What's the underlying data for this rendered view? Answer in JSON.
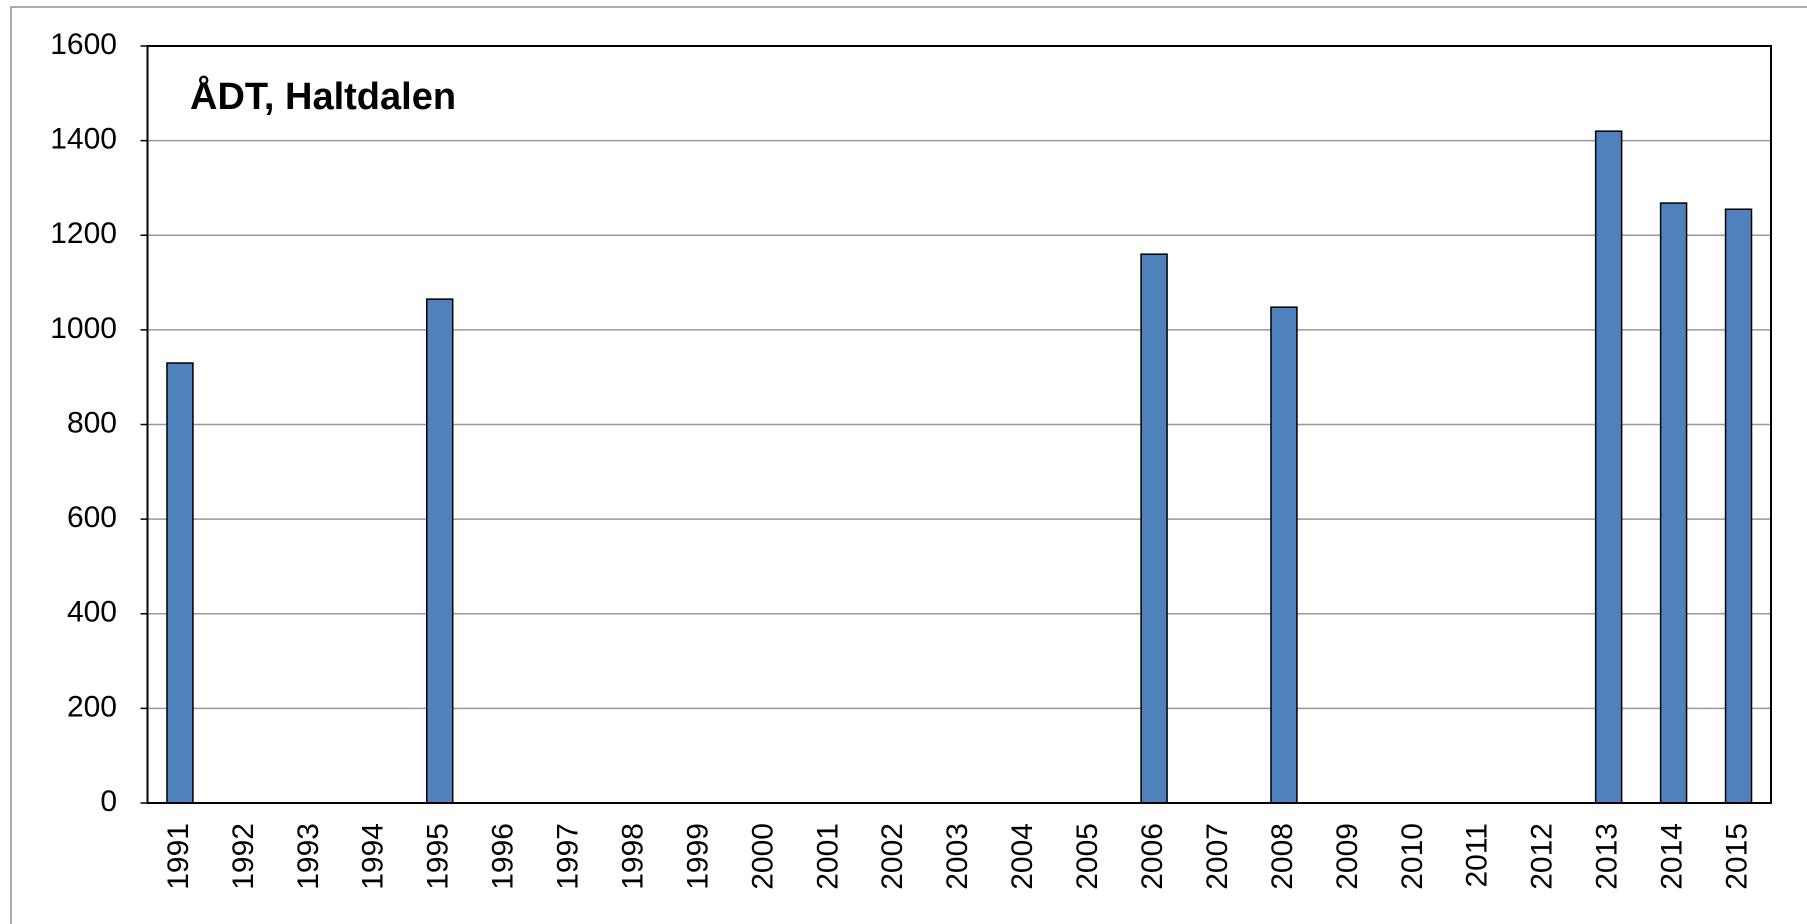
{
  "chart_data": {
    "type": "bar",
    "title": "ÅDT, Haltdalen",
    "categories": [
      "1991",
      "1992",
      "1993",
      "1994",
      "1995",
      "1996",
      "1997",
      "1998",
      "1999",
      "2000",
      "2001",
      "2002",
      "2003",
      "2004",
      "2005",
      "2006",
      "2007",
      "2008",
      "2009",
      "2010",
      "2011",
      "2012",
      "2013",
      "2014",
      "2015"
    ],
    "values": [
      930,
      null,
      null,
      null,
      1065,
      null,
      null,
      null,
      null,
      null,
      null,
      null,
      null,
      null,
      null,
      1160,
      null,
      1048,
      null,
      null,
      null,
      null,
      1420,
      1268,
      1255
    ],
    "color": "#4f81bd",
    "ylim": [
      0,
      1600
    ],
    "yticks": [
      0,
      200,
      400,
      600,
      800,
      1000,
      1200,
      1400,
      1600
    ],
    "grid": true
  }
}
